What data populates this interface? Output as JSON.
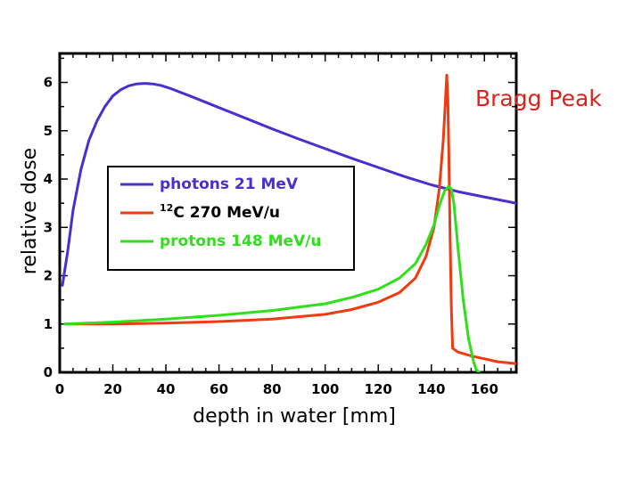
{
  "chart_data": {
    "type": "line",
    "xlabel": "depth in water [mm]",
    "ylabel": "relative dose",
    "xlim": [
      0,
      172
    ],
    "ylim": [
      0,
      6.6
    ],
    "x_ticks": [
      0,
      20,
      40,
      60,
      80,
      100,
      120,
      140,
      160
    ],
    "y_ticks": [
      0,
      1,
      2,
      3,
      4,
      5,
      6
    ],
    "grid": false,
    "legend_position": "center-left",
    "annotation": {
      "text": "Bragg Peak",
      "color": "#e0201a"
    },
    "series": [
      {
        "name": "photons 21 MeV",
        "label_parts": {
          "sup": "",
          "text": "photons 21 MeV"
        },
        "color": "#4a2fd0",
        "x": [
          1,
          3,
          5,
          8,
          11,
          14,
          17,
          20,
          23,
          26,
          29,
          32,
          35,
          38,
          42,
          50,
          60,
          70,
          80,
          90,
          100,
          110,
          120,
          130,
          140,
          150,
          160,
          172
        ],
        "y": [
          1.8,
          2.5,
          3.35,
          4.2,
          4.8,
          5.2,
          5.5,
          5.72,
          5.85,
          5.93,
          5.97,
          5.98,
          5.97,
          5.94,
          5.87,
          5.7,
          5.48,
          5.26,
          5.04,
          4.83,
          4.63,
          4.43,
          4.24,
          4.05,
          3.88,
          3.74,
          3.63,
          3.5
        ]
      },
      {
        "name": "12C 270 MeV/u",
        "label_parts": {
          "sup": "12",
          "text": "C 270 MeV/u"
        },
        "color": "#ee3b12",
        "x": [
          2,
          20,
          40,
          60,
          80,
          100,
          110,
          120,
          128,
          134,
          138,
          141,
          143,
          144.5,
          145.3,
          145.8,
          146.2,
          146.6,
          147,
          147.5,
          148,
          150,
          155,
          160,
          165,
          172
        ],
        "y": [
          1.0,
          1.0,
          1.02,
          1.05,
          1.1,
          1.2,
          1.3,
          1.45,
          1.65,
          1.95,
          2.4,
          3.0,
          3.8,
          4.8,
          5.6,
          6.15,
          5.7,
          4.5,
          3.0,
          1.4,
          0.5,
          0.42,
          0.34,
          0.28,
          0.22,
          0.18
        ]
      },
      {
        "name": "protons 148 MeV/u",
        "label_parts": {
          "sup": "",
          "text": "protons 148 MeV/u"
        },
        "color": "#2ee01a",
        "x": [
          2,
          20,
          40,
          60,
          80,
          100,
          110,
          120,
          128,
          134,
          138,
          141,
          143,
          145,
          146.5,
          147.5,
          148.5,
          150,
          152,
          154,
          156,
          157,
          158
        ],
        "y": [
          1.0,
          1.04,
          1.1,
          1.18,
          1.28,
          1.42,
          1.55,
          1.72,
          1.95,
          2.25,
          2.65,
          3.05,
          3.45,
          3.75,
          3.85,
          3.8,
          3.5,
          2.6,
          1.5,
          0.7,
          0.2,
          0.05,
          0.0
        ]
      }
    ]
  }
}
